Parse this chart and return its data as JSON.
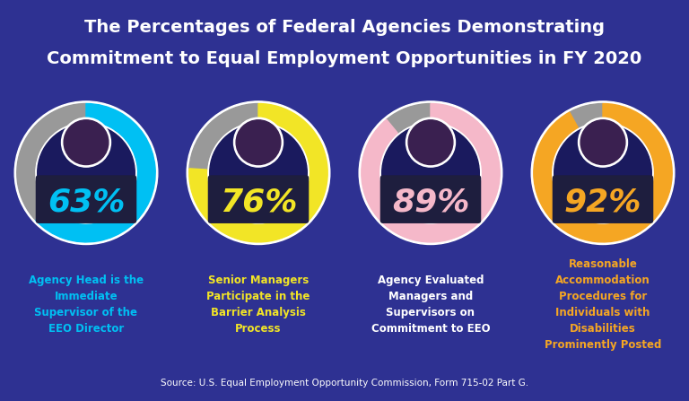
{
  "title_line1": "The Percentages of Federal Agencies Demonstrating",
  "title_line2": "Commitment to Equal Employment Opportunities in FY 2020",
  "title_bg": "#9b2578",
  "main_bg": "#2e3192",
  "footer_bg": "#2a7b8c",
  "separator_color": "#6060aa",
  "footer_text": "Source: U.S. Equal Employment Opportunity Commission, Form 715-02 Part G.",
  "cards": [
    {
      "pct": 63,
      "pct_str": "63%",
      "pct_color": "#00c0f3",
      "ring_color": "#00c0f3",
      "ring_remainder_color": "#999999",
      "ring_white": "#ffffff",
      "label": "Agency Head is the\nImmediate\nSupervisor of the\nEEO Director",
      "label_color": "#00c0f3"
    },
    {
      "pct": 76,
      "pct_str": "76%",
      "pct_color": "#f2e526",
      "ring_color": "#f2e526",
      "ring_remainder_color": "#999999",
      "ring_white": "#ffffff",
      "label": "Senior Managers\nParticipate in the\nBarrier Analysis\nProcess",
      "label_color": "#f2e526"
    },
    {
      "pct": 89,
      "pct_str": "89%",
      "pct_color": "#f5b8c9",
      "ring_color": "#f5b8c9",
      "ring_remainder_color": "#999999",
      "ring_white": "#ffffff",
      "label": "Agency Evaluated\nManagers and\nSupervisors on\nCommitment to EEO",
      "label_color": "#ffffff"
    },
    {
      "pct": 92,
      "pct_str": "92%",
      "pct_color": "#f5a623",
      "ring_color": "#f5a623",
      "ring_remainder_color": "#999999",
      "ring_white": "#ffffff",
      "label": "Reasonable\nAccommodation\nProcedures for\nIndividuals with\nDisabilities\nProminently Posted",
      "label_color": "#f5a623"
    }
  ]
}
